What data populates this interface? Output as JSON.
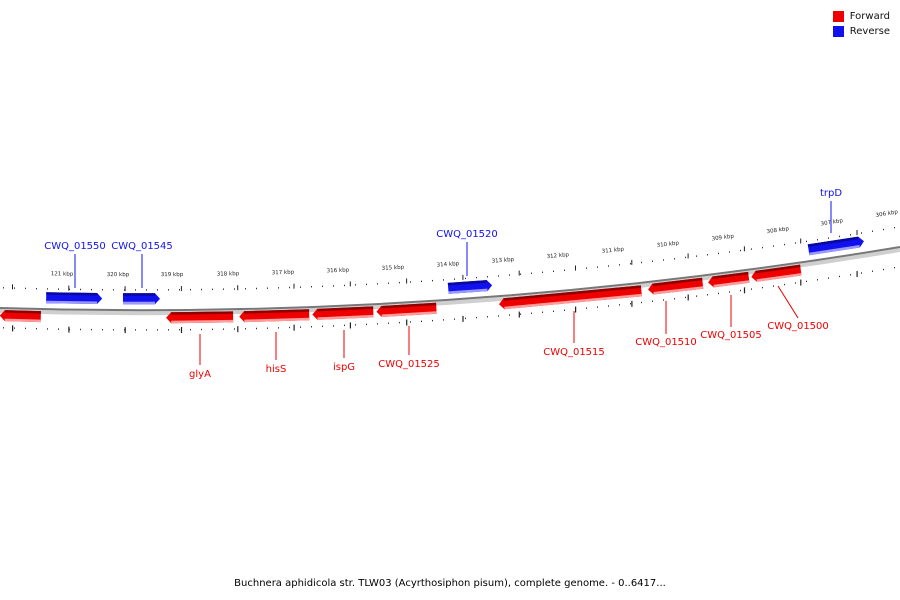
{
  "legend": {
    "items": [
      {
        "label": "Forward",
        "color": "#ee0000"
      },
      {
        "label": "Reverse",
        "color": "#1111ee"
      }
    ]
  },
  "ticks": [
    "121 kbp",
    "320 kbp",
    "319 kbp",
    "318 kbp",
    "317 kbp",
    "316 kbp",
    "315 kbp",
    "314 kbp",
    "313 kbp",
    "312 kbp",
    "311 kbp",
    "310 kbp",
    "309 kbp",
    "308 kbp",
    "307 kbp",
    "306 kbp"
  ],
  "genes": [
    {
      "name": "CWQ_01550",
      "strand": "reverse"
    },
    {
      "name": "CWQ_01545",
      "strand": "reverse"
    },
    {
      "name": "CWQ_01520",
      "strand": "reverse"
    },
    {
      "name": "trpD",
      "strand": "reverse"
    },
    {
      "name": "",
      "strand": "forward"
    },
    {
      "name": "glyA",
      "strand": "forward"
    },
    {
      "name": "hisS",
      "strand": "forward"
    },
    {
      "name": "ispG",
      "strand": "forward"
    },
    {
      "name": "CWQ_01525",
      "strand": "forward"
    },
    {
      "name": "CWQ_01515",
      "strand": "forward"
    },
    {
      "name": "CWQ_01510",
      "strand": "forward"
    },
    {
      "name": "CWQ_01505",
      "strand": "forward"
    },
    {
      "name": "CWQ_01500",
      "strand": "forward"
    }
  ],
  "footer": "Buchnera aphidicola str. TLW03 (Acyrthosiphon pisum), complete genome. - 0..6417..."
}
